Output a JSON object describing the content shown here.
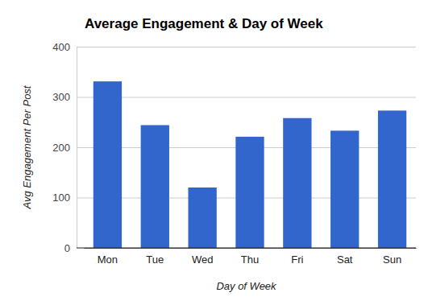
{
  "chart_data": {
    "type": "bar",
    "title": "Average Engagement & Day of Week",
    "x_label": "Day of Week",
    "y_label": "Avg Engagement Per Post",
    "categories": [
      "Mon",
      "Tue",
      "Wed",
      "Thu",
      "Fri",
      "Sat",
      "Sun"
    ],
    "values": [
      331,
      244,
      120,
      221,
      258,
      233,
      273
    ],
    "color": "#3366cc",
    "ylim": [
      0,
      400
    ],
    "yticks": [
      0,
      100,
      200,
      300,
      400
    ],
    "grid": true
  }
}
